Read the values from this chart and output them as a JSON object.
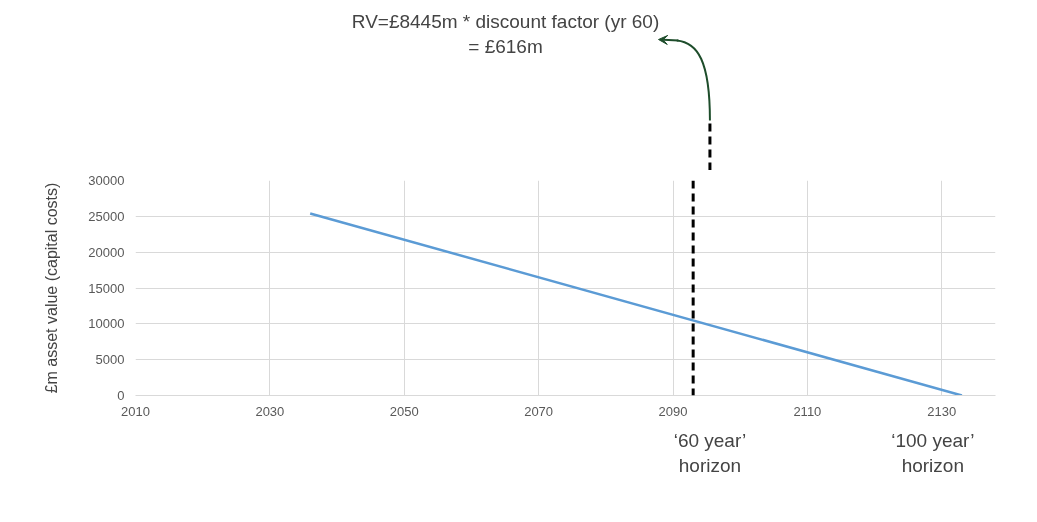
{
  "chart_data": {
    "type": "line",
    "ylabel": "£m asset value (capital costs)",
    "x": [
      2036,
      2133
    ],
    "series": [
      {
        "color": "#5b9bd5",
        "values": [
          25400,
          0
        ]
      }
    ],
    "xlim": [
      2010,
      2138
    ],
    "xticks": [
      2010,
      2030,
      2050,
      2070,
      2090,
      2110,
      2130
    ],
    "ylim": [
      0,
      30000
    ],
    "yticks": [
      0,
      5000,
      10000,
      15000,
      20000,
      25000,
      30000
    ],
    "grid": true,
    "marker": "none",
    "line_style": "solid",
    "ref_lines": [
      {
        "axis": "x",
        "value": 2093,
        "color": "#000000",
        "line_style": "dashed"
      }
    ],
    "annotations": [
      "RV=£8445m * discount factor (yr 60)\n= £616m",
      "‘60 year’\nhorizon",
      "‘100 year’\nhorizon"
    ]
  }
}
